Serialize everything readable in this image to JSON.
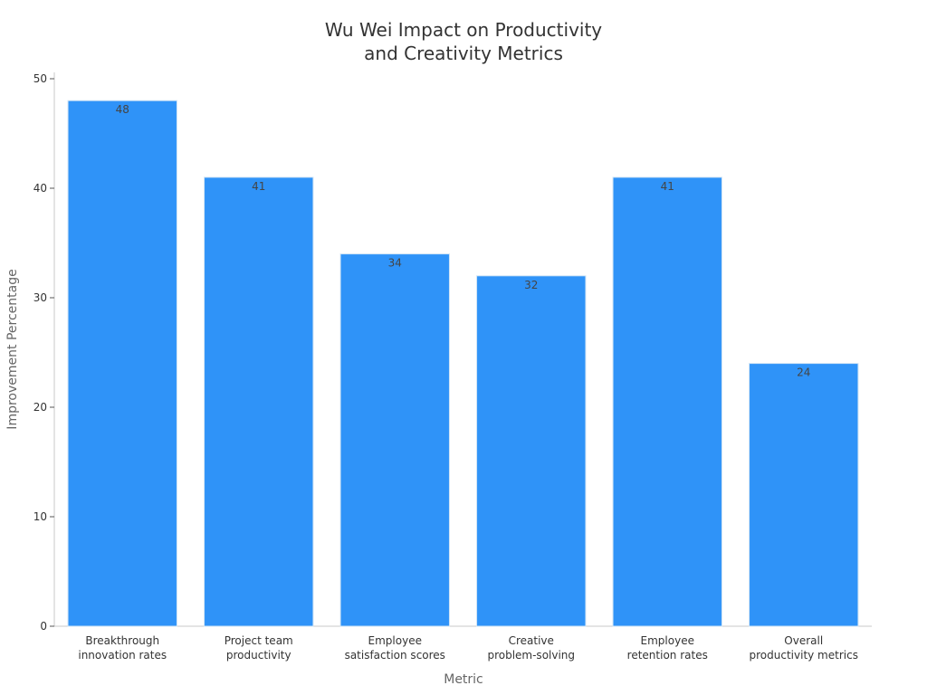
{
  "chart_data": {
    "type": "bar",
    "title_lines": [
      "Wu Wei Impact on Productivity",
      "and Creativity Metrics"
    ],
    "xlabel": "Metric",
    "ylabel": "Improvement Percentage",
    "categories": [
      [
        "Breakthrough",
        "innovation rates"
      ],
      [
        "Project team",
        "productivity"
      ],
      [
        "Employee",
        "satisfaction scores"
      ],
      [
        "Creative",
        "problem-solving"
      ],
      [
        "Employee",
        "retention rates"
      ],
      [
        "Overall",
        "productivity metrics"
      ]
    ],
    "values": [
      48,
      41,
      34,
      32,
      41,
      24
    ],
    "ylim": [
      0,
      50
    ],
    "yticks": [
      0,
      10,
      20,
      30,
      40,
      50
    ],
    "bar_color": "#2f93f8",
    "grid": false,
    "legend": "none"
  }
}
